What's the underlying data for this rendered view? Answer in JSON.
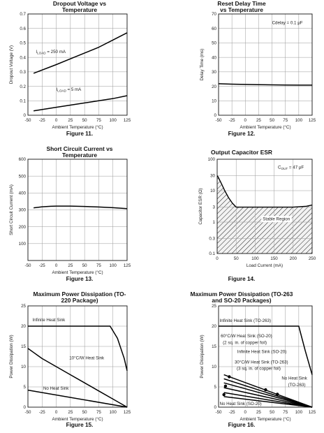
{
  "chart_data": [
    {
      "figure": "Figure 11.",
      "type": "line",
      "title": "Dropout Voltage vs Temperature",
      "xlabel": "Ambient Temperature (°C)",
      "ylabel": "Dropout Voltage (V)",
      "xlim": [
        -50,
        125
      ],
      "ylim": [
        0,
        0.7
      ],
      "xticks": [
        -50,
        -25,
        0,
        25,
        50,
        75,
        100,
        125
      ],
      "xtick_labels": [
        "-50",
        "-25",
        "0",
        "25",
        "50",
        "75",
        "100",
        "125"
      ],
      "yticks": [
        0,
        0.1,
        0.2,
        0.3,
        0.4,
        0.5,
        0.6,
        0.7
      ],
      "ytick_labels": [
        "0",
        "0.1",
        "0.2",
        "0.3",
        "0.4",
        "0.5",
        "0.6",
        "0.7"
      ],
      "yscale": "linear",
      "grid": true,
      "series": [
        {
          "x": [
            -40,
            0,
            25,
            50,
            75,
            100,
            125
          ],
          "y": [
            0.29,
            0.35,
            0.39,
            0.43,
            0.47,
            0.52,
            0.57
          ]
        },
        {
          "x": [
            -40,
            0,
            25,
            50,
            75,
            100,
            125
          ],
          "y": [
            0.03,
            0.055,
            0.07,
            0.085,
            0.1,
            0.115,
            0.135
          ]
        }
      ],
      "annotations": [
        {
          "text": "I",
          "sub": "LOAD",
          "rest": " = 250 mA",
          "x": -36,
          "y": 0.43
        },
        {
          "text": "I",
          "sub": "LOAD",
          "rest": " = 5 mA",
          "x": 0,
          "y": 0.17
        }
      ]
    },
    {
      "figure": "Figure 12.",
      "type": "line",
      "title": "Reset Delay Time vs Temperature",
      "xlabel": "Ambient Temperature (°C)",
      "ylabel": "Delay Time (ms)",
      "xlim": [
        -50,
        125
      ],
      "ylim": [
        0,
        70
      ],
      "xticks": [
        -50,
        -25,
        0,
        25,
        50,
        75,
        100,
        125
      ],
      "xtick_labels": [
        "-50",
        "-25",
        "0",
        "25",
        "50",
        "75",
        "100",
        "125"
      ],
      "yticks": [
        0,
        10,
        20,
        30,
        40,
        50,
        60,
        70
      ],
      "ytick_labels": [
        "0",
        "10",
        "20",
        "30",
        "40",
        "50",
        "60",
        "70"
      ],
      "yscale": "linear",
      "grid": true,
      "series": [
        {
          "x": [
            -50,
            -25,
            0,
            25,
            50,
            75,
            100,
            125
          ],
          "y": [
            21.8,
            21.5,
            21.3,
            21.1,
            21,
            20.9,
            20.8,
            20.8
          ]
        }
      ],
      "annotations": [
        {
          "text": "Cdelay = 0.1 μF",
          "x": 50,
          "y": 63
        }
      ]
    },
    {
      "figure": "Figure 13.",
      "type": "line",
      "title": "Short Circuit Current vs Temperature",
      "xlabel": "Ambient Temperature (°C)",
      "ylabel": "Short Circuit Current (mA)",
      "xlim": [
        -50,
        125
      ],
      "ylim": [
        0,
        600
      ],
      "xticks": [
        -50,
        -25,
        0,
        25,
        50,
        75,
        100,
        125
      ],
      "xtick_labels": [
        "-50",
        "-25",
        "0",
        "25",
        "50",
        "75",
        "100",
        "125"
      ],
      "yticks": [
        0,
        100,
        200,
        300,
        400,
        500,
        600
      ],
      "ytick_labels": [
        "",
        "100",
        "200",
        "300",
        "400",
        "500",
        "600"
      ],
      "yscale": "linear",
      "grid": true,
      "series": [
        {
          "x": [
            -40,
            -25,
            -10,
            0,
            25,
            50,
            75,
            100,
            125
          ],
          "y": [
            312,
            318,
            321,
            322,
            322,
            320,
            317,
            313,
            307
          ]
        }
      ],
      "annotations": []
    },
    {
      "figure": "Figure 14.",
      "type": "area",
      "title": "Output Capacitor ESR",
      "xlabel": "Load Current (mA)",
      "ylabel": "Capacitor ESR (Ω)",
      "xlim": [
        0,
        250
      ],
      "ylim": [
        0.1,
        100
      ],
      "xticks": [
        0,
        50,
        100,
        150,
        200,
        250
      ],
      "xtick_labels": [
        "0",
        "50",
        "100",
        "150",
        "200",
        "250"
      ],
      "yticks": [
        0.1,
        0.3,
        1,
        3,
        10,
        30,
        100
      ],
      "ytick_labels": [
        "0.1",
        "0.3",
        "1",
        "3",
        "10",
        "30",
        "100"
      ],
      "yscale": "log",
      "grid": true,
      "series": [
        {
          "x": [
            0,
            2,
            10,
            20,
            30,
            40,
            50,
            100,
            150,
            200,
            235,
            250
          ],
          "y": [
            30,
            28,
            18,
            10,
            6,
            4,
            3,
            3,
            3,
            3,
            3.2,
            3.5
          ]
        }
      ],
      "region_bottom": 0.1,
      "annotations": [
        {
          "text": "C",
          "sub": "OUT",
          "rest": " = 47 μF",
          "x": 160,
          "y": 50
        },
        {
          "text": "Stable Region",
          "x": 120,
          "y": 1.15
        }
      ]
    },
    {
      "figure": "Figure 15.",
      "type": "line",
      "title": "Maximum Power Dissipation (TO-220 Package)",
      "xlabel": "Ambient Temperature (°C)",
      "ylabel": "Power Dissipation (W)",
      "xlim": [
        -50,
        125
      ],
      "ylim": [
        0,
        25
      ],
      "xticks": [
        -50,
        -25,
        0,
        25,
        50,
        75,
        100,
        125
      ],
      "xtick_labels": [
        "-50",
        "-25",
        "0",
        "25",
        "50",
        "75",
        "100",
        "125"
      ],
      "yticks": [
        0,
        5,
        10,
        15,
        20,
        25
      ],
      "ytick_labels": [
        "0",
        "5",
        "10",
        "15",
        "20",
        "25"
      ],
      "yscale": "linear",
      "grid": true,
      "series": [
        {
          "x": [
            -50,
            95,
            108,
            120,
            125
          ],
          "y": [
            20,
            20,
            17,
            12,
            9
          ]
        },
        {
          "x": [
            -50,
            -40,
            -25,
            0,
            25,
            50,
            75,
            100,
            125
          ],
          "y": [
            14.5,
            13.5,
            12,
            10,
            8,
            6,
            4,
            2,
            0
          ]
        },
        {
          "x": [
            -50,
            125
          ],
          "y": [
            4.2,
            0
          ]
        }
      ],
      "annotations": [
        {
          "text": "Infinite Heat Sink",
          "x": -42,
          "y": 21.2
        },
        {
          "text": "10°C/W Heat Sink",
          "x": 23,
          "y": 11.8
        },
        {
          "text": "No Heat Sink",
          "x": -23,
          "y": 4.3
        }
      ]
    },
    {
      "figure": "Figure 16.",
      "type": "line",
      "title": "Maximum Power Dissipation (TO-263 and SO-20 Packages)",
      "xlabel": "Ambient Temperature (°C)",
      "ylabel": "Power Dissipation (W)",
      "xlim": [
        -50,
        125
      ],
      "ylim": [
        0,
        25
      ],
      "xticks": [
        -50,
        -25,
        0,
        25,
        50,
        75,
        100,
        125
      ],
      "xtick_labels": [
        "-50",
        "-25",
        "0",
        "25",
        "50",
        "75",
        "100",
        "125"
      ],
      "yticks": [
        0,
        5,
        10,
        15,
        20,
        25
      ],
      "ytick_labels": [
        "0",
        "5",
        "10",
        "15",
        "20",
        "25"
      ],
      "yscale": "linear",
      "grid": true,
      "series": [
        {
          "x": [
            -50,
            100,
            112,
            125
          ],
          "y": [
            20,
            20,
            14,
            8
          ]
        },
        {
          "x": [
            -40,
            125
          ],
          "y": [
            8.0,
            0
          ]
        },
        {
          "x": [
            -40,
            125
          ],
          "y": [
            7.0,
            0
          ]
        },
        {
          "x": [
            -40,
            125
          ],
          "y": [
            6.0,
            0
          ]
        },
        {
          "x": [
            -40,
            125
          ],
          "y": [
            4.8,
            0
          ]
        },
        {
          "x": [
            -40,
            125
          ],
          "y": [
            3.6,
            0
          ]
        },
        {
          "x": [
            -40,
            125
          ],
          "y": [
            2.6,
            0
          ]
        }
      ],
      "markers": [
        {
          "x": -30,
          "y": 7.5
        },
        {
          "x": -37,
          "y": 5.2
        },
        {
          "x": -40,
          "y": 3.1
        },
        {
          "x": 38,
          "y": 4.3
        },
        {
          "x": 60,
          "y": 3.2
        }
      ],
      "annotations": [
        {
          "text": "Infinite Heat Sink (TO-263)",
          "x": -48,
          "y": 21
        },
        {
          "text": "60°C/W Heat Sink (SO-20)",
          "x": -46,
          "y": 17.2
        },
        {
          "text": "(2 sq. in. of copper foil)",
          "x": -42,
          "y": 15.6
        },
        {
          "text": "Infinite Heat Sink (SO-20)",
          "x": -15,
          "y": 13.4
        },
        {
          "text": "30°C/W Heat Sink (TO-263)",
          "x": -20,
          "y": 10.8
        },
        {
          "text": "(3 sq. in. of copper foil)",
          "x": -16,
          "y": 9.2
        },
        {
          "text": "No Heat Sink",
          "x": 68,
          "y": 6.8
        },
        {
          "text": "(TO-263)",
          "x": 80,
          "y": 5.2
        },
        {
          "text": "No Heat Sink (SO-20)",
          "x": -48,
          "y": 0.5
        }
      ]
    }
  ]
}
